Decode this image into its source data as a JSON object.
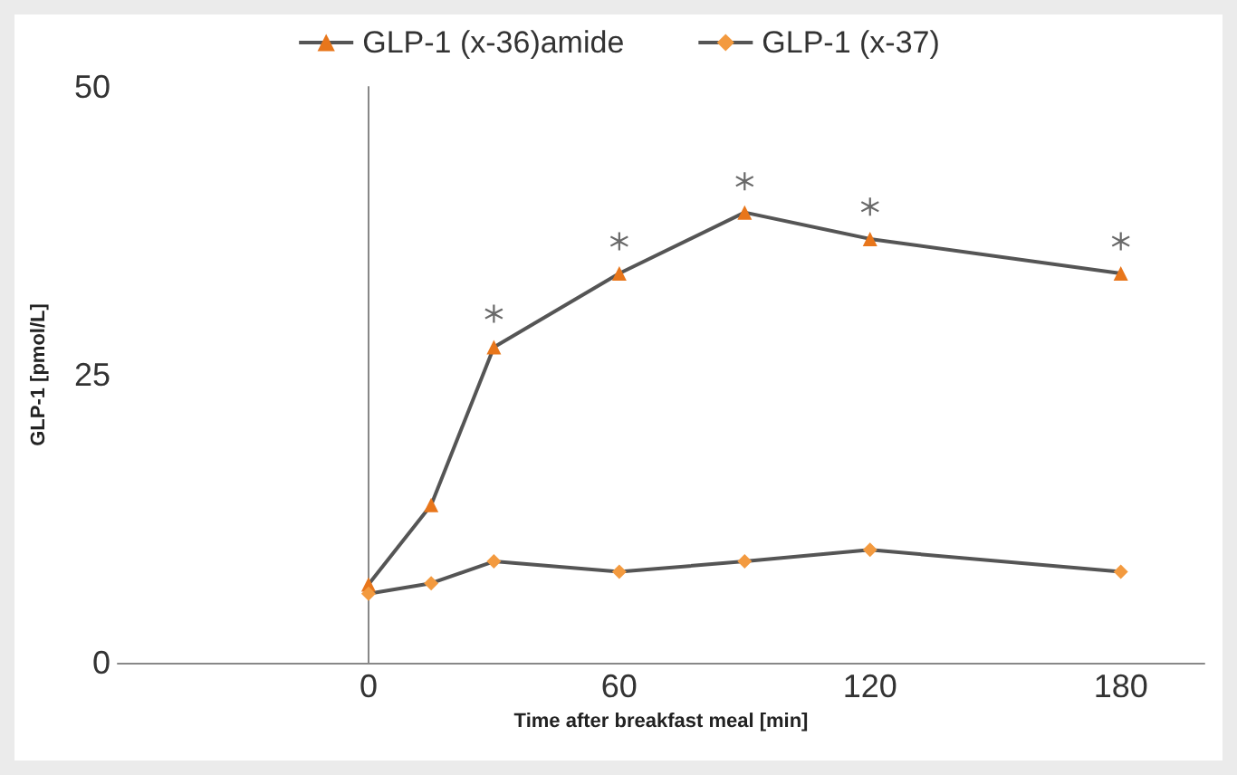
{
  "chart_data": {
    "type": "line",
    "xlabel": "Time after breakfast meal [min]",
    "ylabel": "GLP-1 [pmol/L]",
    "x": [
      0,
      15,
      30,
      60,
      90,
      120,
      180
    ],
    "series": [
      {
        "name": "GLP-1 (x-36)amide",
        "color": "#e8761b",
        "marker": "triangle",
        "values": [
          6.8,
          13.7,
          27.4,
          33.8,
          39.1,
          36.8,
          33.8
        ]
      },
      {
        "name": "GLP-1 (x-37)",
        "color": "#f39a3f",
        "marker": "diamond",
        "values": [
          6.0,
          6.9,
          8.8,
          7.9,
          8.8,
          9.8,
          7.9
        ]
      },
      {
        "type": "scatter",
        "color": "#444444",
        "marker": "star",
        "x": [
          30,
          60,
          90,
          120,
          180
        ],
        "values": [
          30.3,
          36.6,
          41.8,
          39.6,
          36.6
        ]
      }
    ],
    "xlim": [
      -60,
      200
    ],
    "xticks": [
      0,
      60,
      120,
      180
    ],
    "ylim": [
      0,
      50
    ],
    "yticks": [
      0,
      25,
      50
    ],
    "legend": "top"
  }
}
